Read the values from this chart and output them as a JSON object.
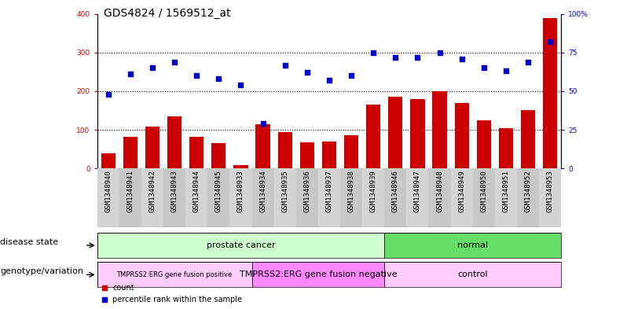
{
  "title": "GDS4824 / 1569512_at",
  "samples": [
    "GSM1348940",
    "GSM1348941",
    "GSM1348942",
    "GSM1348943",
    "GSM1348944",
    "GSM1348945",
    "GSM1348933",
    "GSM1348934",
    "GSM1348935",
    "GSM1348936",
    "GSM1348937",
    "GSM1348938",
    "GSM1348939",
    "GSM1348946",
    "GSM1348947",
    "GSM1348948",
    "GSM1348949",
    "GSM1348950",
    "GSM1348951",
    "GSM1348952",
    "GSM1348953"
  ],
  "counts": [
    40,
    82,
    108,
    135,
    82,
    65,
    8,
    115,
    93,
    68,
    70,
    85,
    165,
    185,
    180,
    200,
    170,
    125,
    105,
    150,
    390
  ],
  "percentiles": [
    48,
    61,
    65,
    69,
    60,
    58,
    54,
    29,
    67,
    62,
    57,
    60,
    75,
    72,
    72,
    75,
    71,
    65,
    63,
    69,
    82
  ],
  "bar_color": "#cc0000",
  "dot_color": "#0000cc",
  "left_ylim": [
    0,
    400
  ],
  "right_ylim": [
    0,
    100
  ],
  "left_yticks": [
    0,
    100,
    200,
    300,
    400
  ],
  "right_yticks": [
    0,
    25,
    50,
    75,
    100
  ],
  "right_yticklabels": [
    "0",
    "25",
    "50",
    "75",
    "100%"
  ],
  "grid_values": [
    100,
    200,
    300
  ],
  "disease_state_groups": [
    {
      "label": "prostate cancer",
      "start": 0,
      "end": 13,
      "color": "#ccffcc"
    },
    {
      "label": "normal",
      "start": 13,
      "end": 21,
      "color": "#66dd66"
    }
  ],
  "genotype_groups": [
    {
      "label": "TMPRSS2:ERG gene fusion positive",
      "start": 0,
      "end": 7,
      "color": "#ffccff"
    },
    {
      "label": "TMPRSS2:ERG gene fusion negative",
      "start": 7,
      "end": 13,
      "color": "#ff88ff"
    },
    {
      "label": "control",
      "start": 13,
      "end": 21,
      "color": "#ffccff"
    }
  ],
  "disease_state_label": "disease state",
  "genotype_label": "genotype/variation",
  "legend_count_label": "count",
  "legend_percentile_label": "percentile rank within the sample",
  "col_colors": [
    "#d4d4d4",
    "#c8c8c8"
  ],
  "title_fontsize": 10,
  "tick_fontsize": 6.5,
  "label_fontsize": 8,
  "row_label_fontsize": 8
}
